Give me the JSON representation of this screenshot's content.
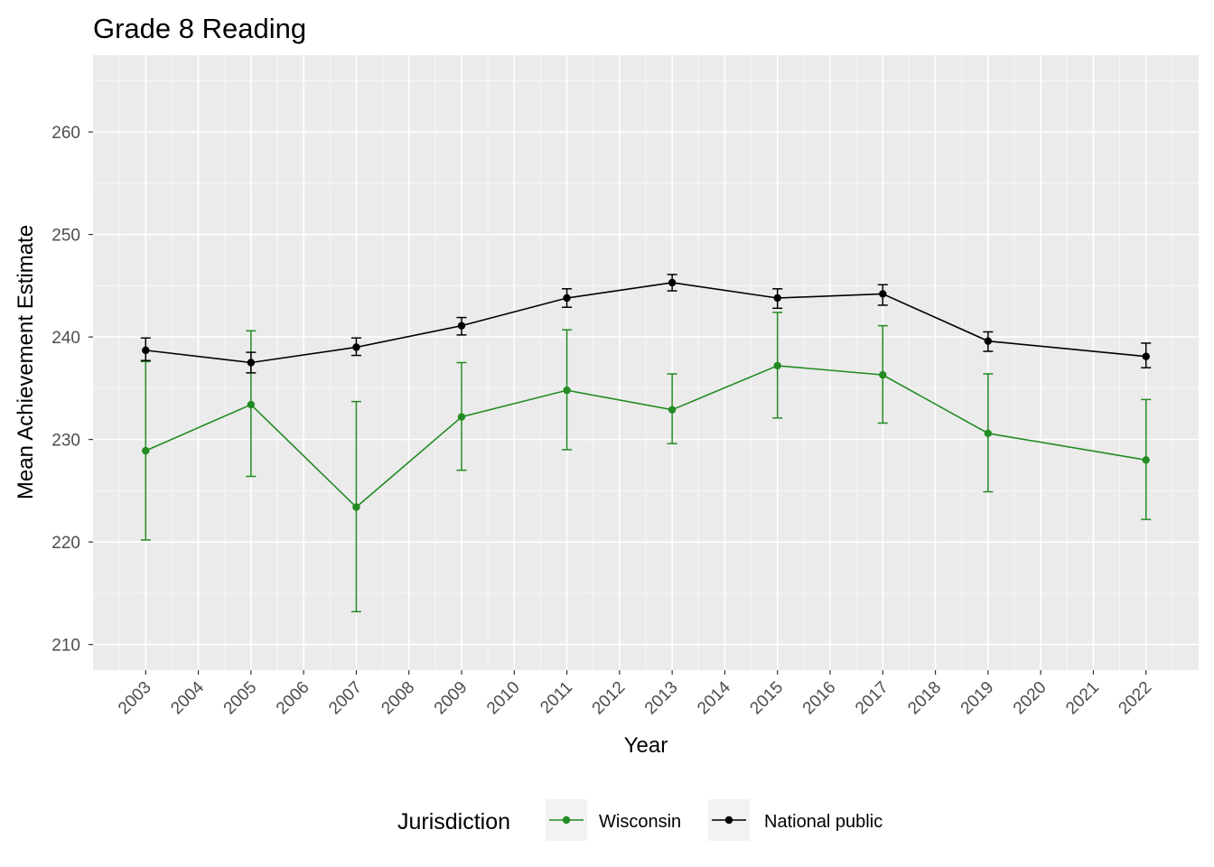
{
  "chart_data": {
    "type": "line",
    "title": "Grade 8 Reading",
    "xlabel": "Year",
    "ylabel": "Mean Achievement Estimate",
    "x_ticks": [
      "2003",
      "2004",
      "2005",
      "2006",
      "2007",
      "2008",
      "2009",
      "2010",
      "2011",
      "2012",
      "2013",
      "2014",
      "2015",
      "2016",
      "2017",
      "2018",
      "2019",
      "2020",
      "2021",
      "2022"
    ],
    "x_range": [
      2002,
      2023
    ],
    "y_ticks": [
      210,
      220,
      230,
      240,
      250,
      260
    ],
    "ylim": [
      207.5,
      267.5
    ],
    "grid": true,
    "legend": {
      "title": "Jurisdiction",
      "position": "bottom"
    },
    "series": [
      {
        "name": "Wisconsin",
        "color": "#228B22",
        "points": [
          {
            "x": 2003,
            "y": 228.9,
            "lo": 220.2,
            "hi": 237.6
          },
          {
            "x": 2005,
            "y": 233.4,
            "lo": 226.4,
            "hi": 240.6
          },
          {
            "x": 2007,
            "y": 223.4,
            "lo": 213.2,
            "hi": 233.7
          },
          {
            "x": 2009,
            "y": 232.2,
            "lo": 227.0,
            "hi": 237.5
          },
          {
            "x": 2011,
            "y": 234.8,
            "lo": 229.0,
            "hi": 240.7
          },
          {
            "x": 2013,
            "y": 232.9,
            "lo": 229.6,
            "hi": 236.4
          },
          {
            "x": 2015,
            "y": 237.2,
            "lo": 232.1,
            "hi": 242.4
          },
          {
            "x": 2017,
            "y": 236.3,
            "lo": 231.6,
            "hi": 241.1
          },
          {
            "x": 2019,
            "y": 230.6,
            "lo": 224.9,
            "hi": 236.4
          },
          {
            "x": 2022,
            "y": 228.0,
            "lo": 222.2,
            "hi": 233.9
          }
        ]
      },
      {
        "name": "National public",
        "color": "#000000",
        "points": [
          {
            "x": 2003,
            "y": 238.7,
            "lo": 237.7,
            "hi": 239.9
          },
          {
            "x": 2005,
            "y": 237.5,
            "lo": 236.5,
            "hi": 238.5
          },
          {
            "x": 2007,
            "y": 239.0,
            "lo": 238.2,
            "hi": 239.9
          },
          {
            "x": 2009,
            "y": 241.1,
            "lo": 240.2,
            "hi": 241.9
          },
          {
            "x": 2011,
            "y": 243.8,
            "lo": 242.9,
            "hi": 244.7
          },
          {
            "x": 2013,
            "y": 245.3,
            "lo": 244.5,
            "hi": 246.1
          },
          {
            "x": 2015,
            "y": 243.8,
            "lo": 242.8,
            "hi": 244.7
          },
          {
            "x": 2017,
            "y": 244.2,
            "lo": 243.1,
            "hi": 245.1
          },
          {
            "x": 2019,
            "y": 239.6,
            "lo": 238.6,
            "hi": 240.5
          },
          {
            "x": 2022,
            "y": 238.1,
            "lo": 237.0,
            "hi": 239.4
          }
        ]
      }
    ]
  }
}
